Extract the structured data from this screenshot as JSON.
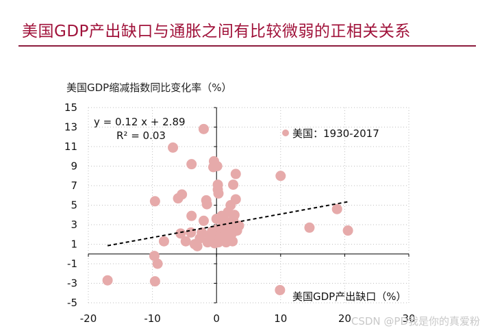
{
  "page_title": "美国GDP产出缺口与通胀之间有比较微弱的正相关关系",
  "watermark": "CSDN @PD我是你的真爱粉",
  "colors": {
    "title": "#a0123a",
    "rule": "#8c1b3c",
    "points": "#e6aaaa",
    "grid": "#bdbdbd",
    "trend": "#000000"
  },
  "chart_data": {
    "type": "scatter",
    "title": "",
    "ylabel": "美国GDP缩减指数同比变化率（%）",
    "xlabel": "美国GDP产出缺口（%）",
    "legend": "美国：1930-2017",
    "equation": "y = 0.12 x + 2.89",
    "r_squared": "R² = 0.03",
    "xlim": [
      -20,
      30
    ],
    "ylim": [
      -5,
      15
    ],
    "x_ticks": [
      -20,
      -10,
      0,
      10,
      20,
      30
    ],
    "x_tick_labels": [
      "-20",
      "-10",
      "0",
      "10",
      "20",
      "30"
    ],
    "y_ticks": [
      -5,
      -3,
      -1,
      1,
      3,
      5,
      7,
      9,
      11,
      13,
      15
    ],
    "y_tick_labels": [
      "-5",
      "-3",
      "-1",
      "1",
      "3",
      "5",
      "7",
      "9",
      "11",
      "13",
      "15"
    ],
    "trendline": {
      "slope": 0.12,
      "intercept": 2.89,
      "x_range": [
        -17,
        20.5
      ]
    },
    "points": [
      {
        "x": -17,
        "y": -2.7
      },
      {
        "x": -9.7,
        "y": -0.2
      },
      {
        "x": -9.2,
        "y": -1.0
      },
      {
        "x": -9.6,
        "y": -2.8
      },
      {
        "x": -9.6,
        "y": 5.4
      },
      {
        "x": -8.2,
        "y": 1.3
      },
      {
        "x": -6.8,
        "y": 10.9
      },
      {
        "x": -6.0,
        "y": 5.7
      },
      {
        "x": -5.4,
        "y": 6.1
      },
      {
        "x": -5.6,
        "y": 2.1
      },
      {
        "x": -4.8,
        "y": 1.3
      },
      {
        "x": -4.0,
        "y": 2.2
      },
      {
        "x": -3.9,
        "y": 3.9
      },
      {
        "x": -3.9,
        "y": 9.2
      },
      {
        "x": -3.4,
        "y": 1.0
      },
      {
        "x": -3.0,
        "y": 0.8
      },
      {
        "x": -2.6,
        "y": 1.6
      },
      {
        "x": -2.3,
        "y": 2.2
      },
      {
        "x": -2.0,
        "y": 3.4
      },
      {
        "x": -2.0,
        "y": 12.8
      },
      {
        "x": -1.6,
        "y": 5.5
      },
      {
        "x": -1.5,
        "y": 5.1
      },
      {
        "x": -1.4,
        "y": 1.2
      },
      {
        "x": -1.1,
        "y": 1.9
      },
      {
        "x": -0.8,
        "y": 1.4
      },
      {
        "x": -0.7,
        "y": 2.3
      },
      {
        "x": -0.5,
        "y": 8.9
      },
      {
        "x": -0.4,
        "y": 9.5
      },
      {
        "x": -0.3,
        "y": 1.1
      },
      {
        "x": -0.2,
        "y": 1.8
      },
      {
        "x": 0.0,
        "y": 3.6
      },
      {
        "x": 0.0,
        "y": 2.5
      },
      {
        "x": 0.1,
        "y": 9.0
      },
      {
        "x": 0.2,
        "y": 7.1
      },
      {
        "x": 0.2,
        "y": 6.6
      },
      {
        "x": 0.3,
        "y": 6.2
      },
      {
        "x": 0.3,
        "y": 1.2
      },
      {
        "x": 0.5,
        "y": 1.6
      },
      {
        "x": 0.6,
        "y": 2.0
      },
      {
        "x": 0.7,
        "y": 2.6
      },
      {
        "x": 0.8,
        "y": 3.9
      },
      {
        "x": 0.9,
        "y": 1.4
      },
      {
        "x": 1.0,
        "y": 2.9
      },
      {
        "x": 1.1,
        "y": 3.7
      },
      {
        "x": 1.3,
        "y": 1.9
      },
      {
        "x": 1.4,
        "y": 2.4
      },
      {
        "x": 1.5,
        "y": 1.2
      },
      {
        "x": 1.6,
        "y": 3.1
      },
      {
        "x": 1.7,
        "y": 2.0
      },
      {
        "x": 1.8,
        "y": 4.3
      },
      {
        "x": 2.0,
        "y": 1.6
      },
      {
        "x": 2.1,
        "y": 2.8
      },
      {
        "x": 2.2,
        "y": 5.0
      },
      {
        "x": 2.4,
        "y": 2.1
      },
      {
        "x": 2.5,
        "y": 1.3
      },
      {
        "x": 2.6,
        "y": 3.5
      },
      {
        "x": 2.6,
        "y": 7.1
      },
      {
        "x": 2.8,
        "y": 4.0
      },
      {
        "x": 3.0,
        "y": 5.6
      },
      {
        "x": 3.0,
        "y": 8.2
      },
      {
        "x": 3.2,
        "y": 2.4
      },
      {
        "x": 3.5,
        "y": 2.9
      },
      {
        "x": 9.9,
        "y": -3.7
      },
      {
        "x": 10.0,
        "y": 8.0
      },
      {
        "x": 14.5,
        "y": 2.7
      },
      {
        "x": 18.8,
        "y": 4.6
      },
      {
        "x": 20.5,
        "y": 2.4
      }
    ]
  }
}
